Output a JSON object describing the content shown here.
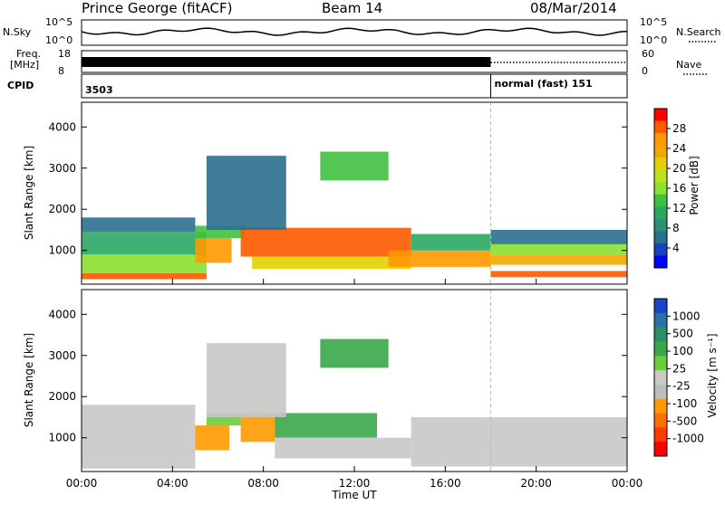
{
  "header": {
    "station": "Prince George (fitACF)",
    "beam": "Beam 14",
    "date": "08/Mar/2014"
  },
  "status_panels": {
    "nsky_label": "N.Sky",
    "nsky_ticks": [
      "10^5",
      "10^0"
    ],
    "nsearch_ticks": [
      "10^5",
      "10^0"
    ],
    "nsearch_label": "N.Search",
    "freq_label": "Freq.",
    "freq_unit": "[MHz]",
    "freq_ticks": [
      "18",
      "8"
    ],
    "nave_ticks": [
      "60",
      "0"
    ],
    "nave_label": "Nave",
    "cpid_label": "CPID",
    "cpid_segments": [
      {
        "label": "3503",
        "start_hour": 0,
        "end_hour": 18
      },
      {
        "label": "normal (fast) 151",
        "start_hour": 18,
        "end_hour": 24
      }
    ]
  },
  "xaxis": {
    "label": "Time UT",
    "ticks": [
      "00:00",
      "04:00",
      "08:00",
      "12:00",
      "16:00",
      "20:00",
      "00:00"
    ],
    "tick_hours": [
      0,
      4,
      8,
      12,
      16,
      20,
      24
    ]
  },
  "power_panel": {
    "ylabel": "Slant Range [km]",
    "yticks": [
      "1000",
      "2000",
      "3000",
      "4000"
    ],
    "ytick_values": [
      1000,
      2000,
      3000,
      4000
    ],
    "ylim": [
      180,
      4600
    ],
    "colorbar_label": "Power [dB]",
    "colorbar_ticks": [
      "28",
      "24",
      "20",
      "16",
      "12",
      "8",
      "4"
    ],
    "colorbar_colors": [
      "#ff0000",
      "#ff5a00",
      "#ff9900",
      "#f0a800",
      "#e3d000",
      "#bde020",
      "#8ce030",
      "#40c040",
      "#2aa860",
      "#2d9070",
      "#2a6f8f",
      "#1a40c0",
      "#0000ff"
    ]
  },
  "velocity_panel": {
    "ylabel": "Slant Range [km]",
    "yticks": [
      "1000",
      "2000",
      "3000",
      "4000"
    ],
    "ytick_values": [
      1000,
      2000,
      3000,
      4000
    ],
    "ylim": [
      180,
      4600
    ],
    "colorbar_label": "Velocity [m s⁻¹]",
    "colorbar_ticks": [
      "1000",
      "500",
      "100",
      "25",
      "-25",
      "-100",
      "-500",
      "-1000"
    ],
    "colorbar_colors": [
      "#1a44c8",
      "#2a6fa8",
      "#2d8f6a",
      "#3aa84a",
      "#6ccc3a",
      "#c8c8c8",
      "#bdbdbd",
      "#ff9900",
      "#ff7000",
      "#ff3a00",
      "#ff0000"
    ]
  },
  "chart_data": {
    "type": "heatmap",
    "description_x": "hours UT",
    "power_bands": [
      {
        "t0": 0.0,
        "t1": 5.5,
        "r0": 300,
        "r1": 450,
        "db": 27
      },
      {
        "t0": 0.0,
        "t1": 5.5,
        "r0": 450,
        "r1": 900,
        "db": 15
      },
      {
        "t0": 0.0,
        "t1": 5.5,
        "r0": 900,
        "r1": 1450,
        "db": 10
      },
      {
        "t0": 0.0,
        "t1": 5.0,
        "r0": 1450,
        "r1": 1800,
        "db": 6
      },
      {
        "t0": 5.0,
        "t1": 6.6,
        "r0": 700,
        "r1": 1300,
        "db": 24
      },
      {
        "t0": 5.0,
        "t1": 7.2,
        "r0": 1300,
        "r1": 1600,
        "db": 12
      },
      {
        "t0": 7.0,
        "t1": 14.5,
        "r0": 850,
        "r1": 1550,
        "db": 27
      },
      {
        "t0": 7.5,
        "t1": 14.5,
        "r0": 550,
        "r1": 850,
        "db": 19
      },
      {
        "t0": 13.5,
        "t1": 18.0,
        "r0": 600,
        "r1": 1000,
        "db": 24
      },
      {
        "t0": 14.5,
        "t1": 18.0,
        "r0": 1000,
        "r1": 1400,
        "db": 10
      },
      {
        "t0": 18.0,
        "t1": 24.0,
        "r0": 350,
        "r1": 500,
        "db": 28
      },
      {
        "t0": 18.0,
        "t1": 24.0,
        "r0": 650,
        "r1": 900,
        "db": 22
      },
      {
        "t0": 18.0,
        "t1": 24.0,
        "r0": 900,
        "r1": 1150,
        "db": 16
      },
      {
        "t0": 18.0,
        "t1": 24.0,
        "r0": 1150,
        "r1": 1500,
        "db": 6
      },
      {
        "t0": 10.5,
        "t1": 13.5,
        "r0": 2700,
        "r1": 3400,
        "db": 12
      },
      {
        "t0": 5.5,
        "t1": 9.0,
        "r0": 1500,
        "r1": 3300,
        "db": 5
      }
    ],
    "velocity_bands": [
      {
        "t0": 0.0,
        "t1": 5.0,
        "r0": 250,
        "r1": 1800,
        "v": 0
      },
      {
        "t0": 5.0,
        "t1": 6.5,
        "r0": 700,
        "r1": 1300,
        "v": -150
      },
      {
        "t0": 5.5,
        "t1": 7.0,
        "r0": 1300,
        "r1": 1600,
        "v": 80
      },
      {
        "t0": 7.0,
        "t1": 8.5,
        "r0": 900,
        "r1": 1600,
        "v": -200
      },
      {
        "t0": 8.5,
        "t1": 13.0,
        "r0": 1000,
        "r1": 1600,
        "v": 120
      },
      {
        "t0": 8.5,
        "t1": 14.5,
        "r0": 500,
        "r1": 1000,
        "v": 0
      },
      {
        "t0": 14.5,
        "t1": 24.0,
        "r0": 300,
        "r1": 1500,
        "v": 0
      },
      {
        "t0": 10.5,
        "t1": 13.5,
        "r0": 2700,
        "r1": 3400,
        "v": 150
      },
      {
        "t0": 5.5,
        "t1": 9.0,
        "r0": 1500,
        "r1": 3300,
        "v": 0
      }
    ]
  }
}
